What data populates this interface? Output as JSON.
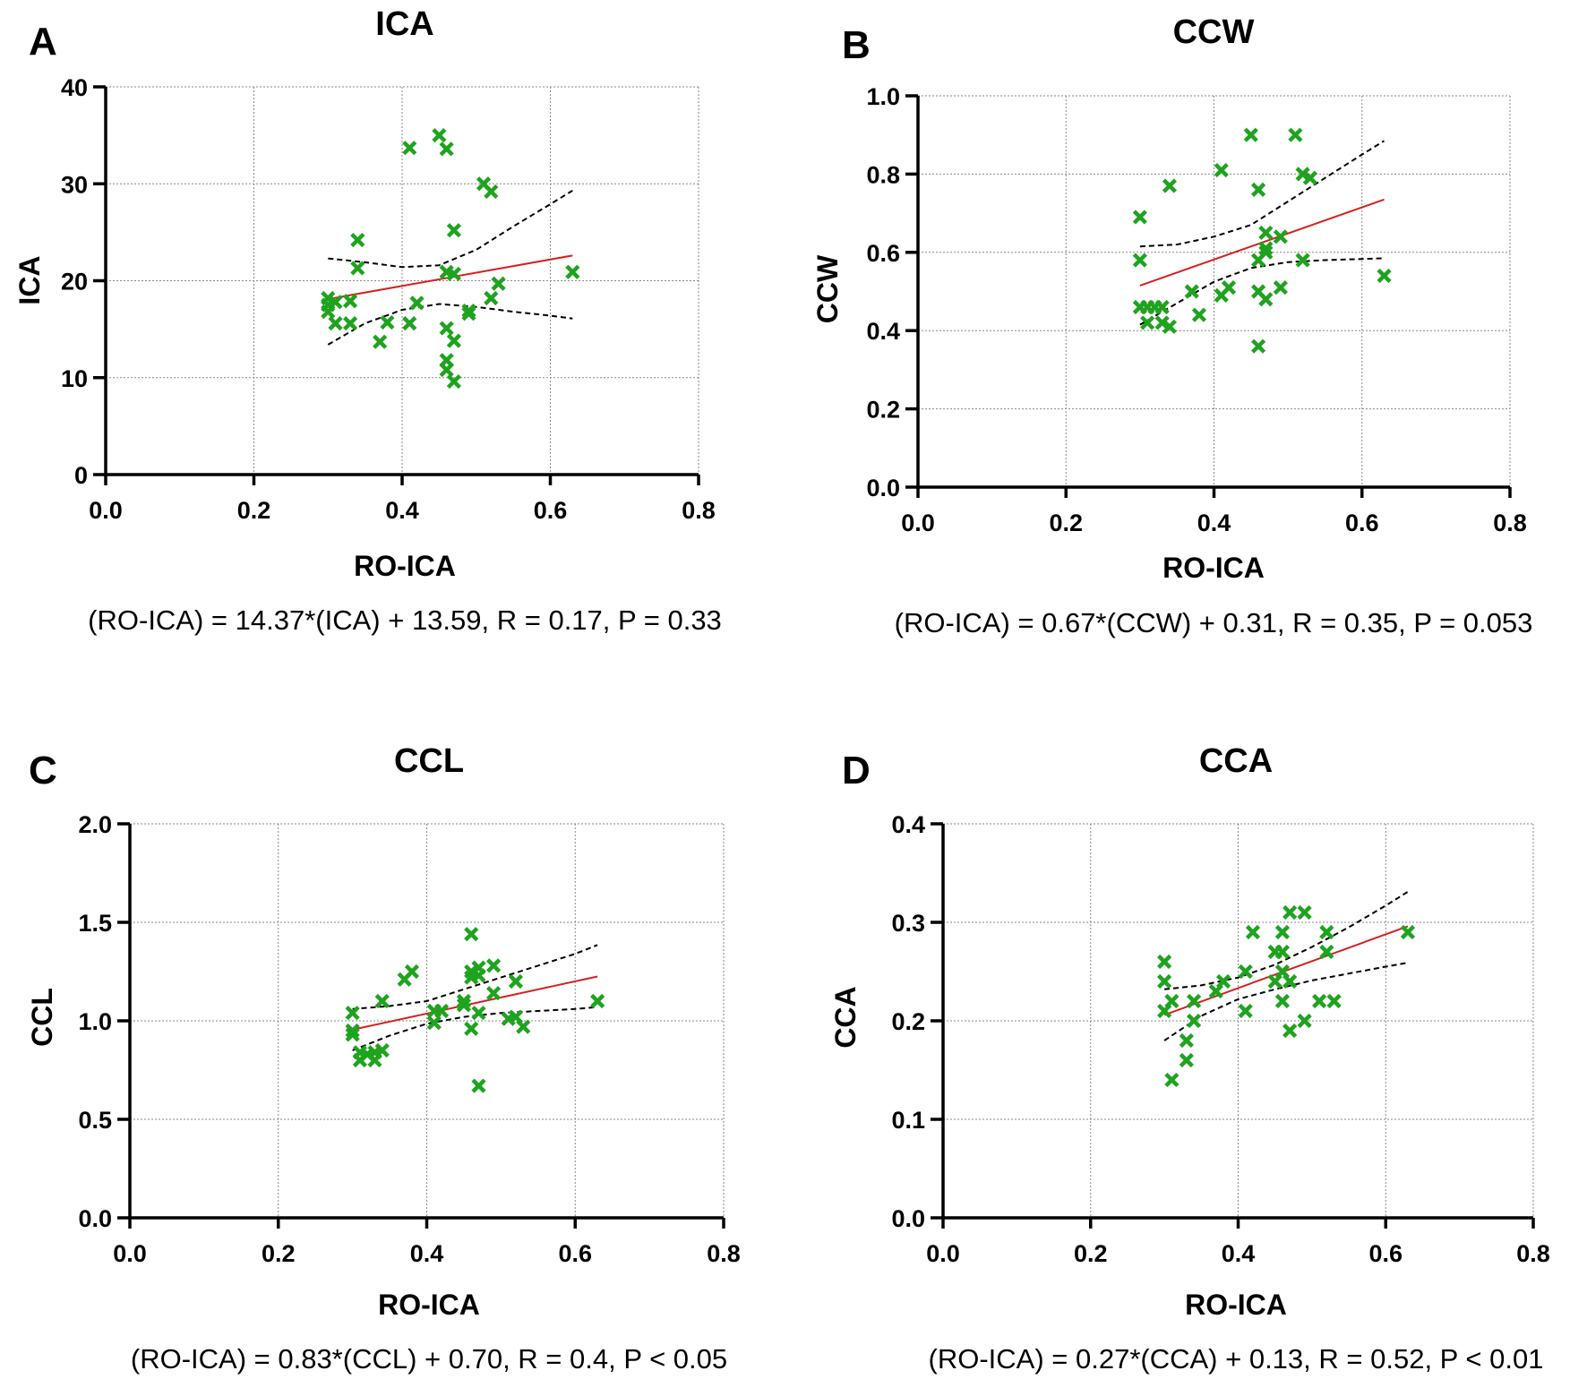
{
  "colors": {
    "marker": "#1fa31f",
    "regression": "#d62020",
    "confidence": "#000000"
  },
  "chart_data": [
    {
      "panel": "A",
      "type": "scatter",
      "title": "ICA",
      "xlabel": "RO-ICA",
      "ylabel": "ICA",
      "xlim": [
        0,
        0.8
      ],
      "ylim": [
        0,
        40
      ],
      "xticks": [
        0,
        0.2,
        0.4,
        0.6,
        0.8
      ],
      "xtick_labels": [
        "0.0",
        "0.2",
        "0.4",
        "0.6",
        "0.8"
      ],
      "yticks": [
        0,
        10,
        20,
        30,
        40
      ],
      "ytick_labels": [
        "0",
        "10",
        "20",
        "30",
        "40"
      ],
      "grid": true,
      "equation": "(RO-ICA) = 14.37*(ICA) + 13.59, R = 0.17, P = 0.33",
      "points": [
        [
          0.3,
          18.2
        ],
        [
          0.3,
          17.5
        ],
        [
          0.3,
          16.8
        ],
        [
          0.31,
          17.8
        ],
        [
          0.31,
          15.6
        ],
        [
          0.33,
          17.9
        ],
        [
          0.33,
          15.6
        ],
        [
          0.34,
          24.2
        ],
        [
          0.34,
          21.3
        ],
        [
          0.37,
          13.7
        ],
        [
          0.38,
          15.7
        ],
        [
          0.41,
          33.7
        ],
        [
          0.41,
          15.6
        ],
        [
          0.42,
          17.7
        ],
        [
          0.45,
          35.0
        ],
        [
          0.46,
          33.6
        ],
        [
          0.46,
          20.9
        ],
        [
          0.46,
          15.1
        ],
        [
          0.46,
          11.8
        ],
        [
          0.46,
          10.8
        ],
        [
          0.47,
          25.2
        ],
        [
          0.47,
          20.7
        ],
        [
          0.47,
          13.8
        ],
        [
          0.47,
          9.6
        ],
        [
          0.49,
          16.9
        ],
        [
          0.49,
          16.6
        ],
        [
          0.51,
          30.0
        ],
        [
          0.52,
          29.2
        ],
        [
          0.52,
          18.2
        ],
        [
          0.53,
          19.7
        ],
        [
          0.63,
          20.9
        ]
      ],
      "regression": [
        [
          0.3,
          18.1
        ],
        [
          0.63,
          22.6
        ]
      ],
      "ci_upper": [
        [
          0.3,
          22.3
        ],
        [
          0.35,
          21.9
        ],
        [
          0.4,
          21.4
        ],
        [
          0.45,
          21.6
        ],
        [
          0.5,
          23.2
        ],
        [
          0.55,
          25.6
        ],
        [
          0.6,
          27.9
        ],
        [
          0.63,
          29.3
        ]
      ],
      "ci_lower": [
        [
          0.3,
          13.4
        ],
        [
          0.35,
          15.6
        ],
        [
          0.4,
          17.0
        ],
        [
          0.45,
          17.6
        ],
        [
          0.5,
          17.3
        ],
        [
          0.55,
          16.8
        ],
        [
          0.6,
          16.4
        ],
        [
          0.63,
          16.1
        ]
      ]
    },
    {
      "panel": "B",
      "type": "scatter",
      "title": "CCW",
      "xlabel": "RO-ICA",
      "ylabel": "CCW",
      "xlim": [
        0,
        0.8
      ],
      "ylim": [
        0,
        1.0
      ],
      "xticks": [
        0,
        0.2,
        0.4,
        0.6,
        0.8
      ],
      "xtick_labels": [
        "0.0",
        "0.2",
        "0.4",
        "0.6",
        "0.8"
      ],
      "yticks": [
        0,
        0.2,
        0.4,
        0.6,
        0.8,
        1.0
      ],
      "ytick_labels": [
        "0.0",
        "0.2",
        "0.4",
        "0.6",
        "0.8",
        "1.0"
      ],
      "grid": true,
      "equation": "(RO-ICA) = 0.67*(CCW) + 0.31, R = 0.35, P = 0.053",
      "points": [
        [
          0.3,
          0.69
        ],
        [
          0.3,
          0.58
        ],
        [
          0.3,
          0.46
        ],
        [
          0.31,
          0.46
        ],
        [
          0.31,
          0.42
        ],
        [
          0.32,
          0.46
        ],
        [
          0.33,
          0.46
        ],
        [
          0.33,
          0.42
        ],
        [
          0.34,
          0.77
        ],
        [
          0.34,
          0.41
        ],
        [
          0.37,
          0.5
        ],
        [
          0.38,
          0.44
        ],
        [
          0.41,
          0.81
        ],
        [
          0.41,
          0.49
        ],
        [
          0.42,
          0.51
        ],
        [
          0.45,
          0.9
        ],
        [
          0.46,
          0.76
        ],
        [
          0.46,
          0.58
        ],
        [
          0.46,
          0.5
        ],
        [
          0.46,
          0.36
        ],
        [
          0.47,
          0.65
        ],
        [
          0.47,
          0.61
        ],
        [
          0.47,
          0.6
        ],
        [
          0.47,
          0.48
        ],
        [
          0.49,
          0.64
        ],
        [
          0.49,
          0.51
        ],
        [
          0.51,
          0.9
        ],
        [
          0.52,
          0.8
        ],
        [
          0.52,
          0.58
        ],
        [
          0.53,
          0.79
        ],
        [
          0.63,
          0.54
        ]
      ],
      "regression": [
        [
          0.3,
          0.515
        ],
        [
          0.63,
          0.735
        ]
      ],
      "ci_upper": [
        [
          0.3,
          0.615
        ],
        [
          0.35,
          0.62
        ],
        [
          0.4,
          0.64
        ],
        [
          0.45,
          0.67
        ],
        [
          0.5,
          0.73
        ],
        [
          0.55,
          0.79
        ],
        [
          0.6,
          0.85
        ],
        [
          0.63,
          0.885
        ]
      ],
      "ci_lower": [
        [
          0.3,
          0.415
        ],
        [
          0.35,
          0.47
        ],
        [
          0.4,
          0.525
        ],
        [
          0.45,
          0.56
        ],
        [
          0.5,
          0.575
        ],
        [
          0.55,
          0.58
        ],
        [
          0.6,
          0.583
        ],
        [
          0.63,
          0.585
        ]
      ]
    },
    {
      "panel": "C",
      "type": "scatter",
      "title": "CCL",
      "xlabel": "RO-ICA",
      "ylabel": "CCL",
      "xlim": [
        0,
        0.8
      ],
      "ylim": [
        0,
        2.0
      ],
      "xticks": [
        0,
        0.2,
        0.4,
        0.6,
        0.8
      ],
      "xtick_labels": [
        "0.0",
        "0.2",
        "0.4",
        "0.6",
        "0.8"
      ],
      "yticks": [
        0,
        0.5,
        1.0,
        1.5,
        2.0
      ],
      "ytick_labels": [
        "0.0",
        "0.5",
        "1.0",
        "1.5",
        "2.0"
      ],
      "grid": true,
      "equation": "(RO-ICA) = 0.83*(CCL) + 0.70, R = 0.4, P < 0.05",
      "points": [
        [
          0.3,
          1.04
        ],
        [
          0.3,
          0.95
        ],
        [
          0.3,
          0.93
        ],
        [
          0.31,
          0.84
        ],
        [
          0.31,
          0.8
        ],
        [
          0.32,
          0.83
        ],
        [
          0.33,
          0.8
        ],
        [
          0.33,
          0.84
        ],
        [
          0.34,
          0.85
        ],
        [
          0.34,
          1.1
        ],
        [
          0.37,
          1.21
        ],
        [
          0.38,
          1.25
        ],
        [
          0.41,
          0.99
        ],
        [
          0.41,
          1.05
        ],
        [
          0.42,
          1.05
        ],
        [
          0.45,
          1.08
        ],
        [
          0.45,
          1.1
        ],
        [
          0.46,
          1.44
        ],
        [
          0.46,
          1.25
        ],
        [
          0.46,
          1.22
        ],
        [
          0.46,
          0.96
        ],
        [
          0.47,
          1.27
        ],
        [
          0.47,
          1.23
        ],
        [
          0.47,
          1.04
        ],
        [
          0.47,
          0.67
        ],
        [
          0.49,
          1.28
        ],
        [
          0.49,
          1.14
        ],
        [
          0.51,
          1.01
        ],
        [
          0.52,
          1.2
        ],
        [
          0.52,
          1.02
        ],
        [
          0.53,
          0.97
        ],
        [
          0.63,
          1.1
        ]
      ],
      "regression": [
        [
          0.3,
          0.955
        ],
        [
          0.63,
          1.225
        ]
      ],
      "ci_upper": [
        [
          0.3,
          1.06
        ],
        [
          0.35,
          1.075
        ],
        [
          0.4,
          1.1
        ],
        [
          0.45,
          1.16
        ],
        [
          0.5,
          1.22
        ],
        [
          0.55,
          1.28
        ],
        [
          0.6,
          1.34
        ],
        [
          0.63,
          1.385
        ]
      ],
      "ci_lower": [
        [
          0.3,
          0.85
        ],
        [
          0.35,
          0.925
        ],
        [
          0.4,
          0.985
        ],
        [
          0.45,
          1.02
        ],
        [
          0.5,
          1.04
        ],
        [
          0.55,
          1.05
        ],
        [
          0.6,
          1.06
        ],
        [
          0.63,
          1.07
        ]
      ]
    },
    {
      "panel": "D",
      "type": "scatter",
      "title": "CCA",
      "xlabel": "RO-ICA",
      "ylabel": "CCA",
      "xlim": [
        0,
        0.8
      ],
      "ylim": [
        0,
        0.4
      ],
      "xticks": [
        0,
        0.2,
        0.4,
        0.6,
        0.8
      ],
      "xtick_labels": [
        "0.0",
        "0.2",
        "0.4",
        "0.6",
        "0.8"
      ],
      "yticks": [
        0,
        0.1,
        0.2,
        0.3,
        0.4
      ],
      "ytick_labels": [
        "0.0",
        "0.1",
        "0.2",
        "0.3",
        "0.4"
      ],
      "grid": true,
      "equation": "(RO-ICA) = 0.27*(CCA) + 0.13, R = 0.52, P < 0.01",
      "points": [
        [
          0.3,
          0.26
        ],
        [
          0.3,
          0.24
        ],
        [
          0.3,
          0.21
        ],
        [
          0.31,
          0.22
        ],
        [
          0.31,
          0.14
        ],
        [
          0.33,
          0.18
        ],
        [
          0.33,
          0.16
        ],
        [
          0.34,
          0.22
        ],
        [
          0.34,
          0.2
        ],
        [
          0.37,
          0.23
        ],
        [
          0.38,
          0.24
        ],
        [
          0.41,
          0.25
        ],
        [
          0.41,
          0.21
        ],
        [
          0.42,
          0.29
        ],
        [
          0.45,
          0.27
        ],
        [
          0.45,
          0.24
        ],
        [
          0.46,
          0.29
        ],
        [
          0.46,
          0.27
        ],
        [
          0.46,
          0.25
        ],
        [
          0.46,
          0.22
        ],
        [
          0.47,
          0.31
        ],
        [
          0.47,
          0.24
        ],
        [
          0.47,
          0.19
        ],
        [
          0.49,
          0.31
        ],
        [
          0.49,
          0.2
        ],
        [
          0.51,
          0.22
        ],
        [
          0.52,
          0.29
        ],
        [
          0.52,
          0.27
        ],
        [
          0.53,
          0.22
        ],
        [
          0.63,
          0.29
        ]
      ],
      "regression": [
        [
          0.3,
          0.206
        ],
        [
          0.63,
          0.296
        ]
      ],
      "ci_upper": [
        [
          0.3,
          0.232
        ],
        [
          0.35,
          0.236
        ],
        [
          0.4,
          0.244
        ],
        [
          0.45,
          0.257
        ],
        [
          0.5,
          0.275
        ],
        [
          0.55,
          0.295
        ],
        [
          0.6,
          0.317
        ],
        [
          0.63,
          0.331
        ]
      ],
      "ci_lower": [
        [
          0.3,
          0.18
        ],
        [
          0.35,
          0.205
        ],
        [
          0.4,
          0.222
        ],
        [
          0.45,
          0.232
        ],
        [
          0.5,
          0.241
        ],
        [
          0.55,
          0.248
        ],
        [
          0.6,
          0.255
        ],
        [
          0.63,
          0.259
        ]
      ]
    }
  ]
}
